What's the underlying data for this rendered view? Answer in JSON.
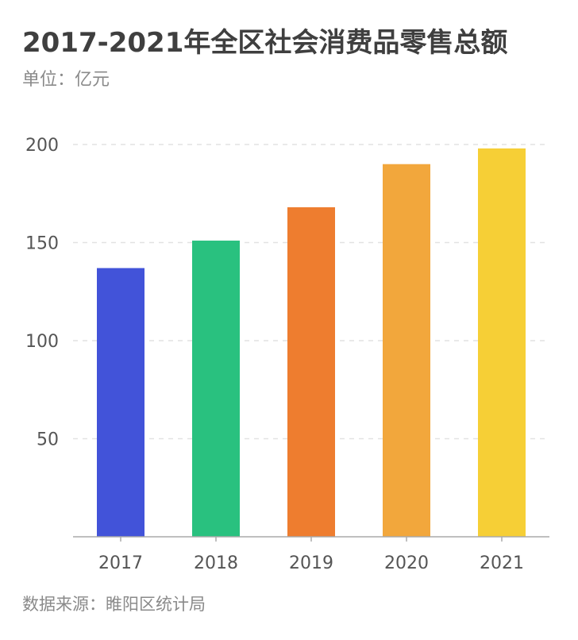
{
  "header": {
    "title": "2017-2021年全区社会消费品零售总额",
    "unit": "单位：亿元"
  },
  "footer": {
    "source": "数据来源：睢阳区统计局"
  },
  "colors": {
    "bars": [
      "#4253d9",
      "#29c17f",
      "#ee7d2f",
      "#f2a73c",
      "#f6cf36"
    ],
    "grid": "#e2e2e2",
    "axis": "#aaaaaa",
    "text": "#555555"
  },
  "chart_data": {
    "type": "bar",
    "categories": [
      "2017",
      "2018",
      "2019",
      "2020",
      "2021"
    ],
    "values": [
      137,
      151,
      168,
      190,
      198
    ],
    "title": "2017-2021年全区社会消费品零售总额",
    "subtitle": "单位：亿元",
    "xlabel": "",
    "ylabel": "",
    "ylim": [
      0,
      200
    ],
    "yticks": [
      50,
      100,
      150,
      200
    ],
    "grid": true,
    "legend": "none"
  }
}
